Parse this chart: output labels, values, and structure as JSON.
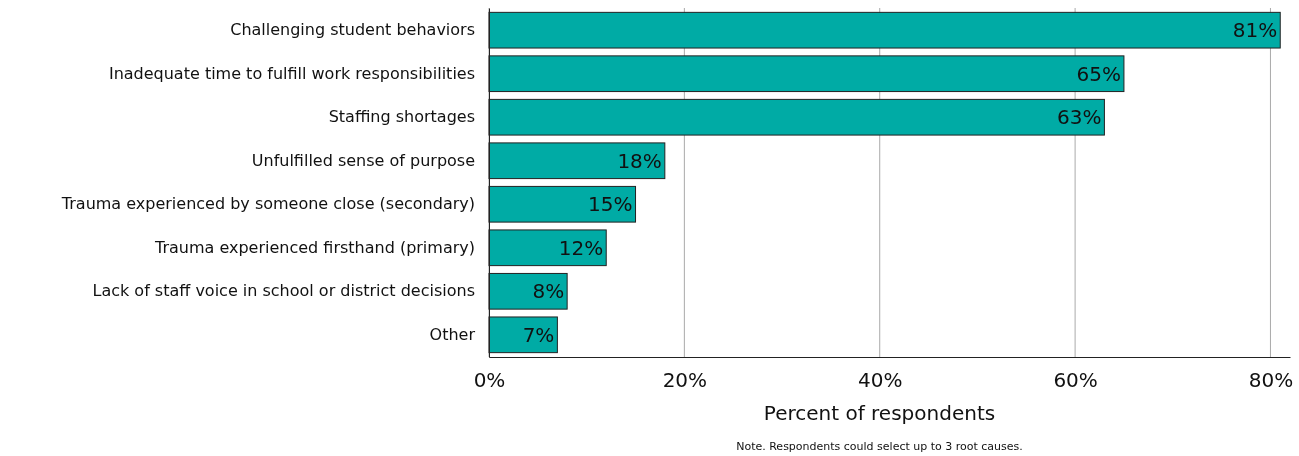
{
  "chart_data": {
    "type": "bar",
    "orientation": "horizontal",
    "categories": [
      "Challenging student behaviors",
      "Inadequate time to fulfill work responsibilities",
      "Staffing shortages",
      "Unfulfilled sense of purpose",
      "Trauma experienced by someone close (secondary)",
      "Trauma experienced firsthand (primary)",
      "Lack of staff voice in school or district decisions",
      "Other"
    ],
    "values": [
      81,
      65,
      63,
      18,
      15,
      12,
      8,
      7
    ],
    "value_labels": [
      "81%",
      "65%",
      "63%",
      "18%",
      "15%",
      "12%",
      "8%",
      "7%"
    ],
    "color": "#00aba5",
    "xlim": [
      0,
      82
    ],
    "xticks": [
      {
        "value": 0,
        "label": "0%"
      },
      {
        "value": 20,
        "label": "20%"
      },
      {
        "value": 40,
        "label": "40%"
      },
      {
        "value": 60,
        "label": "60%"
      },
      {
        "value": 80,
        "label": "80%"
      }
    ],
    "xlabel": "Percent of respondents",
    "grid": "x",
    "annotations": [
      "Note. Respondents could select up to 3 root causes."
    ]
  }
}
